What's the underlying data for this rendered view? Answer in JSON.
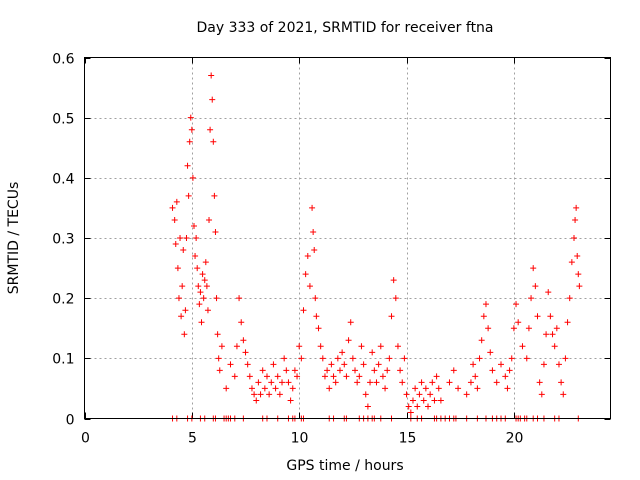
{
  "chart_data": {
    "type": "scatter",
    "title": "Day 333 of 2021, SRMTID for receiver ftna",
    "xlabel": "GPS time / hours",
    "ylabel": "SRMTID / TECUs",
    "xlim": [
      0,
      24.5
    ],
    "ylim": [
      0,
      0.6
    ],
    "xticks": [
      0,
      5,
      10,
      15,
      20
    ],
    "yticks": [
      0,
      0.1,
      0.2,
      0.3,
      0.4,
      0.5,
      0.6
    ],
    "xtick_labels": [
      "0",
      "5",
      "10",
      "15",
      "20"
    ],
    "ytick_labels": [
      "0",
      "0.1",
      "0.2",
      "0.3",
      "0.4",
      "0.5",
      "0.6"
    ],
    "grid": true,
    "marker": "+",
    "color": "#ff0000",
    "series": [
      {
        "name": "SRMTID",
        "points": [
          [
            4.1,
            0.35
          ],
          [
            4.2,
            0.33
          ],
          [
            4.25,
            0.29
          ],
          [
            4.3,
            0.36
          ],
          [
            4.35,
            0.25
          ],
          [
            4.4,
            0.2
          ],
          [
            4.45,
            0.3
          ],
          [
            4.5,
            0.17
          ],
          [
            4.55,
            0.22
          ],
          [
            4.6,
            0.28
          ],
          [
            4.65,
            0.14
          ],
          [
            4.7,
            0.18
          ],
          [
            4.75,
            0.3
          ],
          [
            4.8,
            0.42
          ],
          [
            4.85,
            0.37
          ],
          [
            4.9,
            0.46
          ],
          [
            4.95,
            0.5
          ],
          [
            5.0,
            0.48
          ],
          [
            5.05,
            0.4
          ],
          [
            5.1,
            0.32
          ],
          [
            5.15,
            0.27
          ],
          [
            5.2,
            0.3
          ],
          [
            5.25,
            0.25
          ],
          [
            5.3,
            0.22
          ],
          [
            5.35,
            0.19
          ],
          [
            5.4,
            0.21
          ],
          [
            5.45,
            0.16
          ],
          [
            5.5,
            0.24
          ],
          [
            5.55,
            0.2
          ],
          [
            5.6,
            0.23
          ],
          [
            5.65,
            0.26
          ],
          [
            5.7,
            0.22
          ],
          [
            5.75,
            0.18
          ],
          [
            5.8,
            0.33
          ],
          [
            5.85,
            0.48
          ],
          [
            5.9,
            0.57
          ],
          [
            5.95,
            0.53
          ],
          [
            6.0,
            0.46
          ],
          [
            6.05,
            0.37
          ],
          [
            6.1,
            0.31
          ],
          [
            6.15,
            0.2
          ],
          [
            6.2,
            0.14
          ],
          [
            6.25,
            0.1
          ],
          [
            6.3,
            0.08
          ],
          [
            6.4,
            0.12
          ],
          [
            6.6,
            0.05
          ],
          [
            6.8,
            0.09
          ],
          [
            7.0,
            0.07
          ],
          [
            7.1,
            0.12
          ],
          [
            7.2,
            0.2
          ],
          [
            7.3,
            0.16
          ],
          [
            7.4,
            0.13
          ],
          [
            7.5,
            0.11
          ],
          [
            7.6,
            0.09
          ],
          [
            7.7,
            0.07
          ],
          [
            7.8,
            0.05
          ],
          [
            7.9,
            0.04
          ],
          [
            8.0,
            0.03
          ],
          [
            8.1,
            0.06
          ],
          [
            8.2,
            0.04
          ],
          [
            8.3,
            0.08
          ],
          [
            8.4,
            0.05
          ],
          [
            8.5,
            0.07
          ],
          [
            8.6,
            0.04
          ],
          [
            8.7,
            0.06
          ],
          [
            8.8,
            0.09
          ],
          [
            8.9,
            0.05
          ],
          [
            9.0,
            0.07
          ],
          [
            9.1,
            0.04
          ],
          [
            9.2,
            0.06
          ],
          [
            9.3,
            0.1
          ],
          [
            9.4,
            0.08
          ],
          [
            9.5,
            0.06
          ],
          [
            9.6,
            0.03
          ],
          [
            9.7,
            0.05
          ],
          [
            9.8,
            0.08
          ],
          [
            9.9,
            0.07
          ],
          [
            10.0,
            0.12
          ],
          [
            10.1,
            0.1
          ],
          [
            10.2,
            0.18
          ],
          [
            10.3,
            0.24
          ],
          [
            10.4,
            0.27
          ],
          [
            10.5,
            0.22
          ],
          [
            10.6,
            0.35
          ],
          [
            10.65,
            0.31
          ],
          [
            10.7,
            0.28
          ],
          [
            10.75,
            0.2
          ],
          [
            10.8,
            0.17
          ],
          [
            10.9,
            0.15
          ],
          [
            11.0,
            0.12
          ],
          [
            11.1,
            0.1
          ],
          [
            11.2,
            0.07
          ],
          [
            11.3,
            0.08
          ],
          [
            11.4,
            0.05
          ],
          [
            11.5,
            0.09
          ],
          [
            11.6,
            0.07
          ],
          [
            11.7,
            0.06
          ],
          [
            11.8,
            0.1
          ],
          [
            11.9,
            0.08
          ],
          [
            12.0,
            0.11
          ],
          [
            12.1,
            0.09
          ],
          [
            12.2,
            0.07
          ],
          [
            12.3,
            0.13
          ],
          [
            12.4,
            0.16
          ],
          [
            12.5,
            0.1
          ],
          [
            12.6,
            0.08
          ],
          [
            12.7,
            0.06
          ],
          [
            12.8,
            0.07
          ],
          [
            12.9,
            0.12
          ],
          [
            13.0,
            0.09
          ],
          [
            13.1,
            0.04
          ],
          [
            13.2,
            0.02
          ],
          [
            13.3,
            0.06
          ],
          [
            13.4,
            0.11
          ],
          [
            13.5,
            0.08
          ],
          [
            13.6,
            0.06
          ],
          [
            13.7,
            0.09
          ],
          [
            13.8,
            0.12
          ],
          [
            13.9,
            0.07
          ],
          [
            14.0,
            0.05
          ],
          [
            14.1,
            0.08
          ],
          [
            14.2,
            0.1
          ],
          [
            14.3,
            0.17
          ],
          [
            14.4,
            0.23
          ],
          [
            14.5,
            0.2
          ],
          [
            14.6,
            0.12
          ],
          [
            14.7,
            0.08
          ],
          [
            14.8,
            0.06
          ],
          [
            14.9,
            0.1
          ],
          [
            15.0,
            0.04
          ],
          [
            15.1,
            0.02
          ],
          [
            15.2,
            0.01
          ],
          [
            15.3,
            0.03
          ],
          [
            15.4,
            0.05
          ],
          [
            15.5,
            0.02
          ],
          [
            15.6,
            0.04
          ],
          [
            15.7,
            0.06
          ],
          [
            15.8,
            0.03
          ],
          [
            15.9,
            0.05
          ],
          [
            16.0,
            0.02
          ],
          [
            16.1,
            0.04
          ],
          [
            16.2,
            0.06
          ],
          [
            16.3,
            0.03
          ],
          [
            16.4,
            0.07
          ],
          [
            16.5,
            0.05
          ],
          [
            16.6,
            0.03
          ],
          [
            17.0,
            0.06
          ],
          [
            17.2,
            0.08
          ],
          [
            17.4,
            0.05
          ],
          [
            17.8,
            0.04
          ],
          [
            18.0,
            0.06
          ],
          [
            18.1,
            0.09
          ],
          [
            18.2,
            0.07
          ],
          [
            18.3,
            0.05
          ],
          [
            18.4,
            0.1
          ],
          [
            18.5,
            0.13
          ],
          [
            18.6,
            0.17
          ],
          [
            18.7,
            0.19
          ],
          [
            18.8,
            0.15
          ],
          [
            18.9,
            0.11
          ],
          [
            19.0,
            0.08
          ],
          [
            19.2,
            0.06
          ],
          [
            19.4,
            0.09
          ],
          [
            19.6,
            0.07
          ],
          [
            19.7,
            0.05
          ],
          [
            19.8,
            0.08
          ],
          [
            19.9,
            0.1
          ],
          [
            20.0,
            0.15
          ],
          [
            20.1,
            0.19
          ],
          [
            20.2,
            0.16
          ],
          [
            20.4,
            0.12
          ],
          [
            20.6,
            0.1
          ],
          [
            20.7,
            0.15
          ],
          [
            20.8,
            0.2
          ],
          [
            20.9,
            0.25
          ],
          [
            21.0,
            0.22
          ],
          [
            21.1,
            0.17
          ],
          [
            21.2,
            0.06
          ],
          [
            21.3,
            0.04
          ],
          [
            21.4,
            0.09
          ],
          [
            21.5,
            0.14
          ],
          [
            21.6,
            0.21
          ],
          [
            21.7,
            0.17
          ],
          [
            21.8,
            0.14
          ],
          [
            21.9,
            0.12
          ],
          [
            22.0,
            0.15
          ],
          [
            22.1,
            0.09
          ],
          [
            22.2,
            0.06
          ],
          [
            22.3,
            0.04
          ],
          [
            22.4,
            0.1
          ],
          [
            22.5,
            0.16
          ],
          [
            22.6,
            0.2
          ],
          [
            22.7,
            0.26
          ],
          [
            22.8,
            0.3
          ],
          [
            22.85,
            0.33
          ],
          [
            22.9,
            0.35
          ],
          [
            22.95,
            0.27
          ],
          [
            23.0,
            0.24
          ],
          [
            23.05,
            0.22
          ]
        ],
        "baseline_points_x": [
          4.1,
          4.3,
          4.8,
          5.0,
          5.4,
          5.6,
          6.0,
          6.1,
          6.5,
          6.6,
          6.7,
          6.8,
          7.0,
          7.4,
          8.3,
          8.5,
          9.0,
          9.5,
          9.7,
          9.8,
          10.1,
          10.2,
          11.4,
          11.6,
          12.1,
          12.2,
          12.8,
          13.0,
          13.2,
          13.4,
          13.5,
          13.8,
          14.3,
          15.2,
          15.5,
          15.7,
          16.3,
          16.4,
          16.6,
          16.8,
          17.0,
          17.2,
          17.3,
          17.8,
          18.3,
          18.7,
          19.0,
          19.2,
          19.4,
          19.6,
          20.1,
          20.2,
          20.3,
          20.5,
          20.6,
          20.9,
          21.1,
          21.4,
          21.9,
          22.1,
          23.0
        ]
      }
    ]
  }
}
